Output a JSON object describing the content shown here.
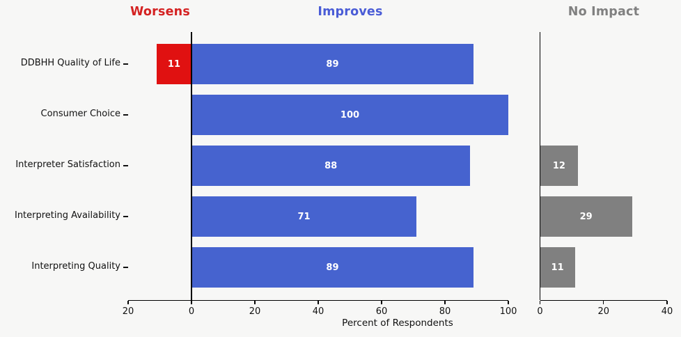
{
  "chart_data": {
    "type": "bar",
    "orientation": "horizontal-diverging",
    "title": "",
    "title_headers": [
      {
        "label": "Worsens",
        "color": "#d42222"
      },
      {
        "label": "Improves",
        "color": "#4a5cd6"
      },
      {
        "label": "No Impact",
        "color": "#808080"
      }
    ],
    "categories": [
      "DDBHH Quality of Life",
      "Consumer Choice",
      "Interpreter Satisfaction",
      "Interpreting Availability",
      "Interpreting Quality"
    ],
    "series": [
      {
        "name": "Worsens",
        "color": "#e01111",
        "panel": "main-left",
        "values": [
          11,
          null,
          null,
          null,
          null
        ]
      },
      {
        "name": "Improves",
        "color": "#4663cf",
        "panel": "main-right",
        "values": [
          89,
          100,
          88,
          71,
          89
        ]
      },
      {
        "name": "No Impact",
        "color": "#808080",
        "panel": "right",
        "values": [
          null,
          null,
          12,
          29,
          11
        ]
      }
    ],
    "xlabel": "Percent of Respondents",
    "main_axis": {
      "xlim": [
        -20,
        100
      ],
      "ticks": [
        {
          "v": -20,
          "label": "20"
        },
        {
          "v": 0,
          "label": "0"
        },
        {
          "v": 20,
          "label": "20"
        },
        {
          "v": 40,
          "label": "40"
        },
        {
          "v": 60,
          "label": "60"
        },
        {
          "v": 80,
          "label": "80"
        },
        {
          "v": 100,
          "label": "100"
        }
      ]
    },
    "right_axis": {
      "xlim": [
        0,
        40
      ],
      "ticks": [
        {
          "v": 0,
          "label": "0"
        },
        {
          "v": 20,
          "label": "20"
        },
        {
          "v": 40,
          "label": "40"
        }
      ]
    },
    "bar_label_color": "#ffffff",
    "background_color": "#f7f7f6",
    "grid": false,
    "legend_position": "top-as-headers"
  }
}
